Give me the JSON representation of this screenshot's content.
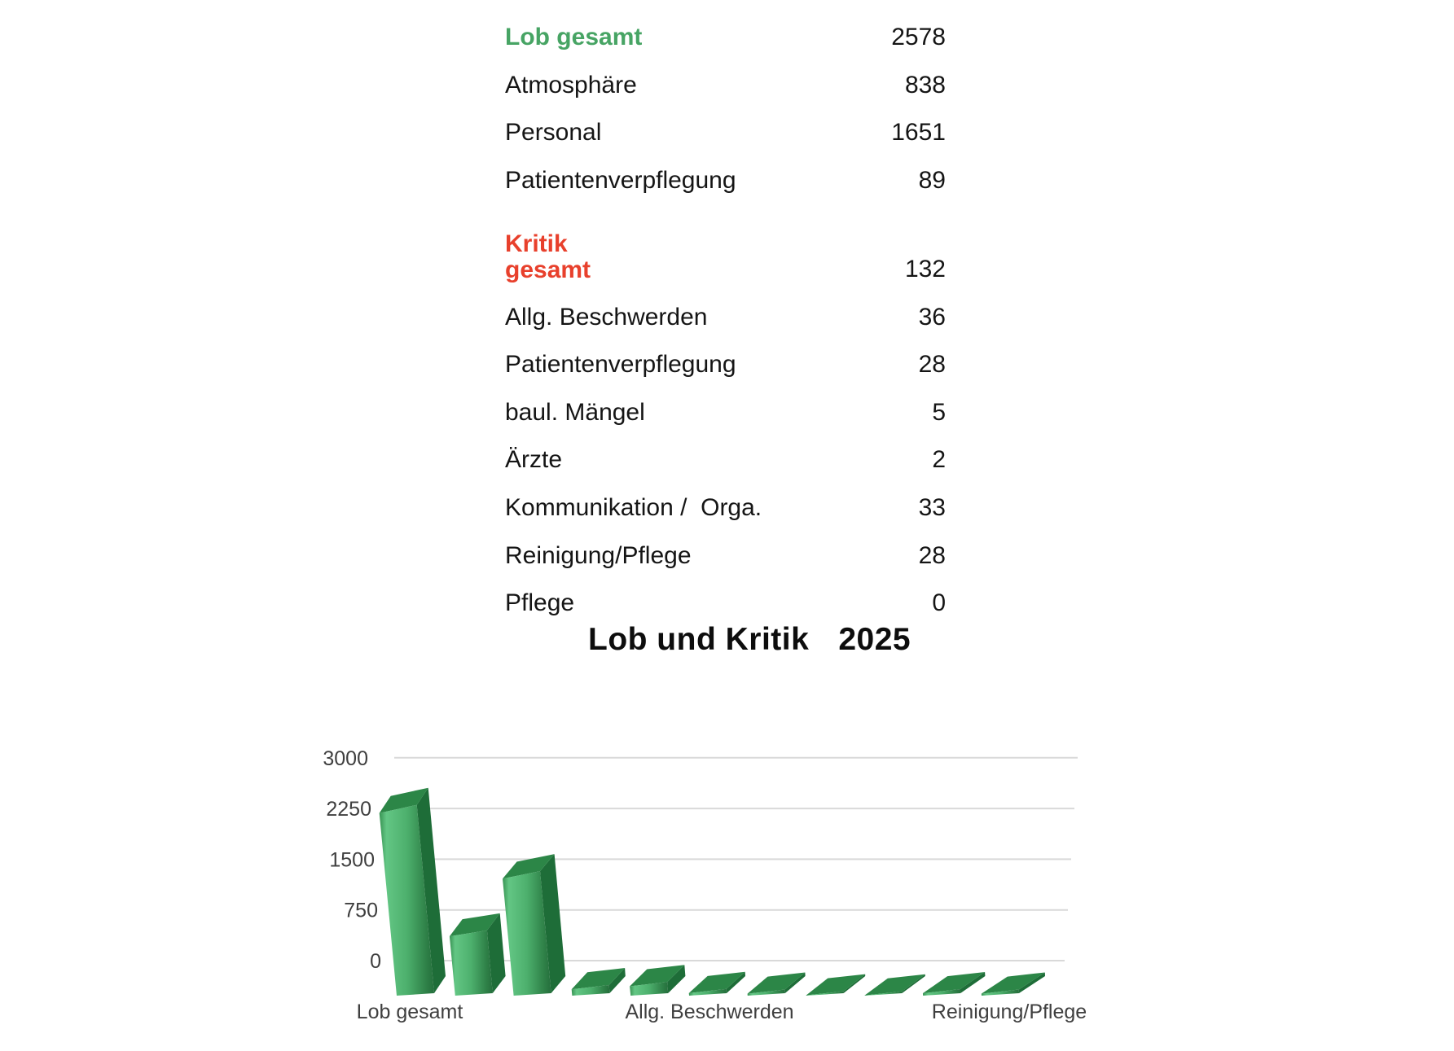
{
  "table": {
    "rows": [
      {
        "label": "Lob gesamt",
        "value": "2578",
        "style": "green"
      },
      {
        "label": "Atmosphäre",
        "value": "838",
        "style": "normal"
      },
      {
        "label": "Personal",
        "value": "1651",
        "style": "normal"
      },
      {
        "label": "Patientenverpflegung",
        "value": "89",
        "style": "normal"
      },
      {
        "label": "Kritik\ngesamt",
        "value": "132",
        "style": "red"
      },
      {
        "label": "Allg. Beschwerden",
        "value": "36",
        "style": "normal"
      },
      {
        "label": "Patientenverpflegung",
        "value": "28",
        "style": "normal"
      },
      {
        "label": "baul. Mängel",
        "value": "5",
        "style": "normal"
      },
      {
        "label": "Ärzte",
        "value": "2",
        "style": "normal"
      },
      {
        "label": "Kommunikation /  Orga.",
        "value": "33",
        "style": "normal"
      },
      {
        "label": "Reinigung/Pflege",
        "value": "28",
        "style": "normal"
      },
      {
        "label": "Pflege",
        "value": "0",
        "style": "normal"
      }
    ]
  },
  "chart_title": {
    "text": "Lob und Kritik",
    "year": "2025"
  },
  "chart_data": {
    "type": "bar",
    "style": "3d-column",
    "title": "Lob und Kritik 2025",
    "categories": [
      "Lob gesamt",
      "Atmosphäre",
      "Personal",
      "Patientenverpflegung",
      "Kritik gesamt",
      "Allg. Beschwerden",
      "Patientenverpflegung",
      "baul. Mängel",
      "Ärzte",
      "Kommunikation / Orga.",
      "Reinigung/Pflege",
      "Pflege"
    ],
    "values": [
      2578,
      838,
      1651,
      89,
      132,
      36,
      28,
      5,
      2,
      33,
      28,
      0
    ],
    "ylim": [
      0,
      3000
    ],
    "yticks": [
      0,
      750,
      1500,
      2250,
      3000
    ],
    "visible_x_labels": [
      "Lob gesamt",
      "Allg. Beschwerden",
      "Reinigung/Pflege"
    ],
    "x_label_indices": [
      0,
      5,
      10
    ],
    "grid": true,
    "legend": "none",
    "gridline_color": "#d9d9d9",
    "axis_text_color": "#3f3f3f",
    "bar_front_light": "#63c684",
    "bar_front_mid": "#4db06d",
    "bar_front_dark": "#256f3c",
    "bar_side": "#1e6d38",
    "bar_top": "#2c8647"
  },
  "colors": {
    "green_label": "#47a464",
    "red_label": "#e8402c",
    "text": "#151515"
  }
}
